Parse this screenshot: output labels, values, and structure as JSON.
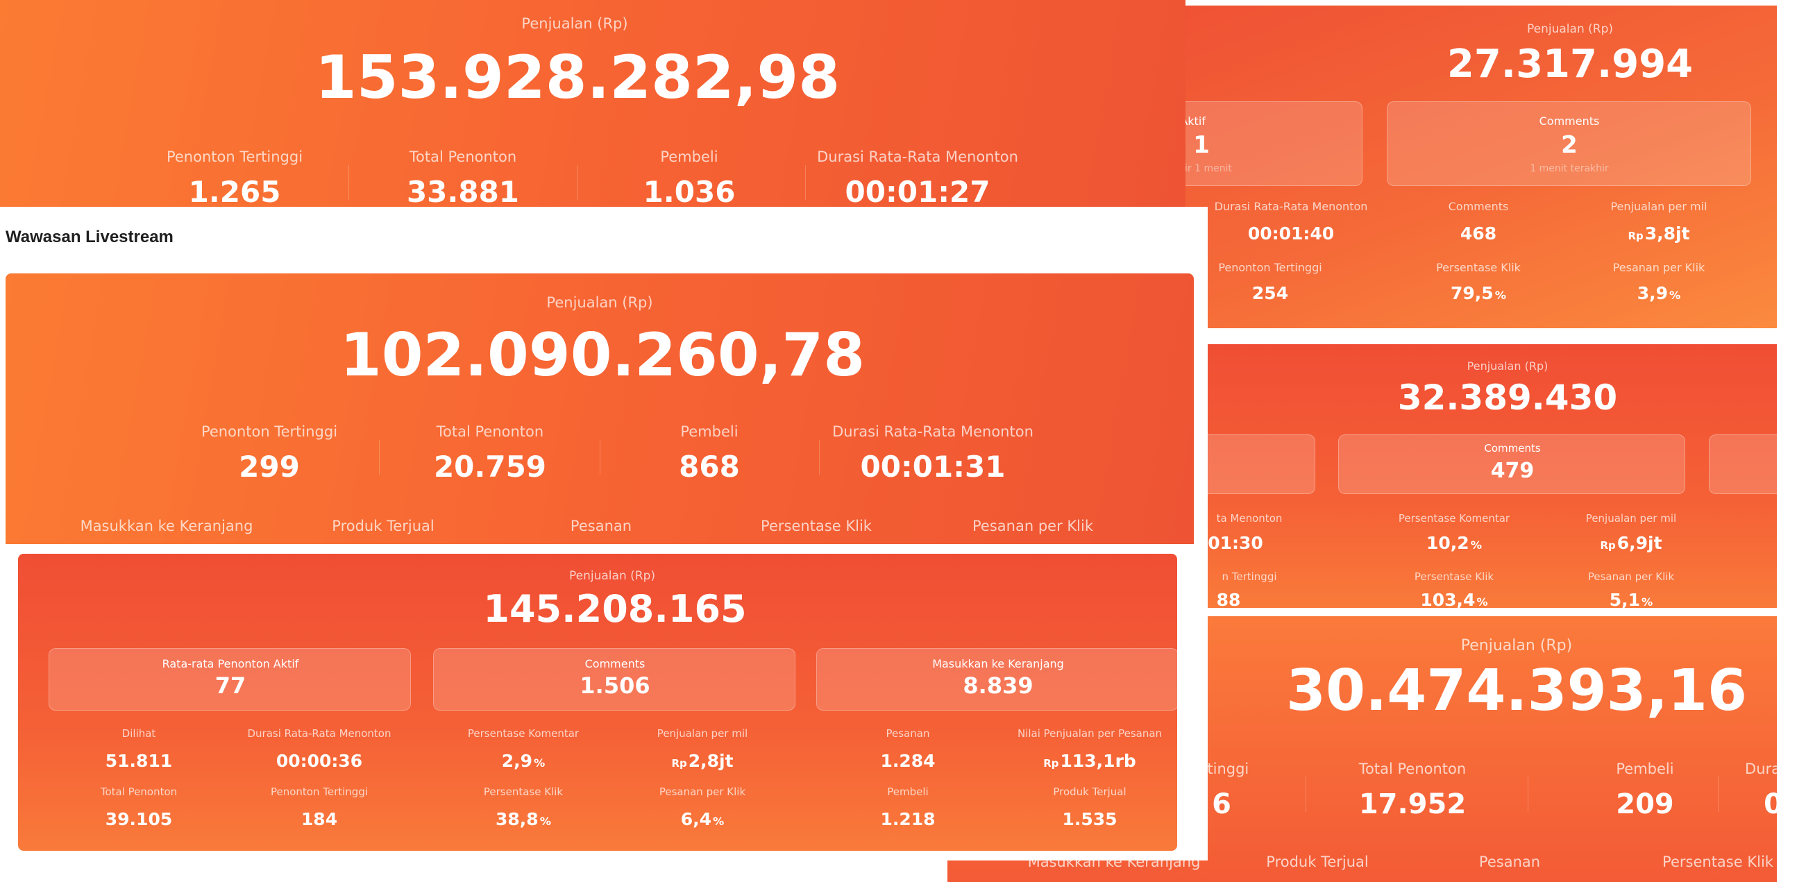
{
  "panel1": {
    "sales_label": "Penjualan (Rp)",
    "sales_value": "153.928.282,98",
    "stats": [
      {
        "label": "Penonton Tertinggi",
        "value": "1.265"
      },
      {
        "label": "Total Penonton",
        "value": "33.881"
      },
      {
        "label": "Pembeli",
        "value": "1.036"
      },
      {
        "label": "Durasi Rata-Rata Menonton",
        "value": "00:01:27"
      }
    ]
  },
  "panel2": {
    "section_title": "Wawasan Livestream",
    "sales_label": "Penjualan (Rp)",
    "sales_value": "102.090.260,78",
    "stats": [
      {
        "label": "Penonton Tertinggi",
        "value": "299"
      },
      {
        "label": "Total Penonton",
        "value": "20.759"
      },
      {
        "label": "Pembeli",
        "value": "868"
      },
      {
        "label": "Durasi Rata-Rata Menonton",
        "value": "00:01:31"
      }
    ],
    "bottom_labels": [
      "Masukkan ke Keranjang",
      "Produk Terjual",
      "Pesanan",
      "Persentase Klik",
      "Pesanan per Klik"
    ]
  },
  "panel3": {
    "sales_label": "Penjualan (Rp)",
    "sales_value": "145.208.165",
    "cards": [
      {
        "label": "Rata-rata Penonton Aktif",
        "value": "77"
      },
      {
        "label": "Comments",
        "value": "1.506"
      },
      {
        "label": "Masukkan ke Keranjang",
        "value": "8.839"
      }
    ],
    "row1": [
      {
        "label": "Dilihat",
        "value": "51.811"
      },
      {
        "label": "Durasi Rata-Rata Menonton",
        "value": "00:00:36"
      },
      {
        "label": "Persentase Komentar",
        "value": "2,9",
        "unit": "%"
      },
      {
        "label": "Penjualan per mil",
        "prefix": "Rp",
        "value": "2,8jt"
      },
      {
        "label": "Pesanan",
        "value": "1.284"
      },
      {
        "label": "Nilai Penjualan per Pesanan",
        "prefix": "Rp",
        "value": "113,1rb"
      }
    ],
    "row2": [
      {
        "label": "Total Penonton",
        "value": "39.105"
      },
      {
        "label": "Penonton Tertinggi",
        "value": "184"
      },
      {
        "label": "Persentase Klik",
        "value": "38,8",
        "unit": "%"
      },
      {
        "label": "Pesanan per Klik",
        "value": "6,4",
        "unit": "%"
      },
      {
        "label": "Pembeli",
        "value": "1.218"
      },
      {
        "label": "Produk Terjual",
        "value": "1.535"
      }
    ]
  },
  "panel4": {
    "sales_label": "Penjualan (Rp)",
    "sales_value": "27.317.994",
    "card1": {
      "label": "n Aktif",
      "value": "1",
      "sub": "ir 1 menit"
    },
    "card2": {
      "label": "Comments",
      "value": "2",
      "sub": "1 menit terakhir"
    },
    "row1": [
      {
        "label": "Durasi Rata-Rata Menonton",
        "value": "00:01:40"
      },
      {
        "label": "Comments",
        "value": "468"
      },
      {
        "label": "Penjualan per mil",
        "prefix": "Rp",
        "value": "3,8jt"
      }
    ],
    "row2": [
      {
        "label": "Penonton Tertinggi",
        "value": "254"
      },
      {
        "label": "Persentase Klik",
        "value": "79,5",
        "unit": "%"
      },
      {
        "label": "Pesanan per Klik",
        "value": "3,9",
        "unit": "%"
      }
    ]
  },
  "panel5": {
    "sales_label": "Penjualan (Rp)",
    "sales_value": "32.389.430",
    "card": {
      "label": "Comments",
      "value": "479"
    },
    "row1": [
      {
        "label": "ta Menonton",
        "value": "01:30"
      },
      {
        "label": "Persentase Komentar",
        "value": "10,2",
        "unit": "%"
      },
      {
        "label": "Penjualan per mil",
        "prefix": "Rp",
        "value": "6,9jt"
      }
    ],
    "row2": [
      {
        "label": "n Tertinggi",
        "value": "88"
      },
      {
        "label": "Persentase Klik",
        "value": "103,4",
        "unit": "%"
      },
      {
        "label": "Pesanan per Klik",
        "value": "5,1",
        "unit": "%"
      }
    ]
  },
  "panel6": {
    "sales_label": "Penjualan (Rp)",
    "sales_value": "30.474.393,16",
    "stats": [
      {
        "label": "rtinggi",
        "value": "6"
      },
      {
        "label": "Total Penonton",
        "value": "17.952"
      },
      {
        "label": "Pembeli",
        "value": "209"
      },
      {
        "label": "Duras",
        "value": "0"
      }
    ],
    "bottom_labels": [
      "Masukkan ke Keranjang",
      "Produk Terjual",
      "Pesanan",
      "Persentase Klik"
    ]
  }
}
